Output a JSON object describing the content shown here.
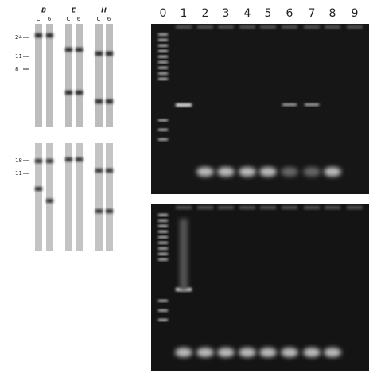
{
  "left_panel": {
    "groups": [
      {
        "label": "B",
        "lanes": [
          "C",
          "6"
        ]
      },
      {
        "label": "E",
        "lanes": [
          "C",
          "6"
        ]
      },
      {
        "label": "H",
        "lanes": [
          "C",
          "6"
        ]
      }
    ],
    "top_markers": [
      "24",
      "11",
      "8"
    ],
    "bottom_markers": [
      "18",
      "11"
    ]
  },
  "right_panel": {
    "lane_labels": [
      "0",
      "1",
      "2",
      "3",
      "4",
      "5",
      "6",
      "7",
      "8",
      "9"
    ]
  }
}
